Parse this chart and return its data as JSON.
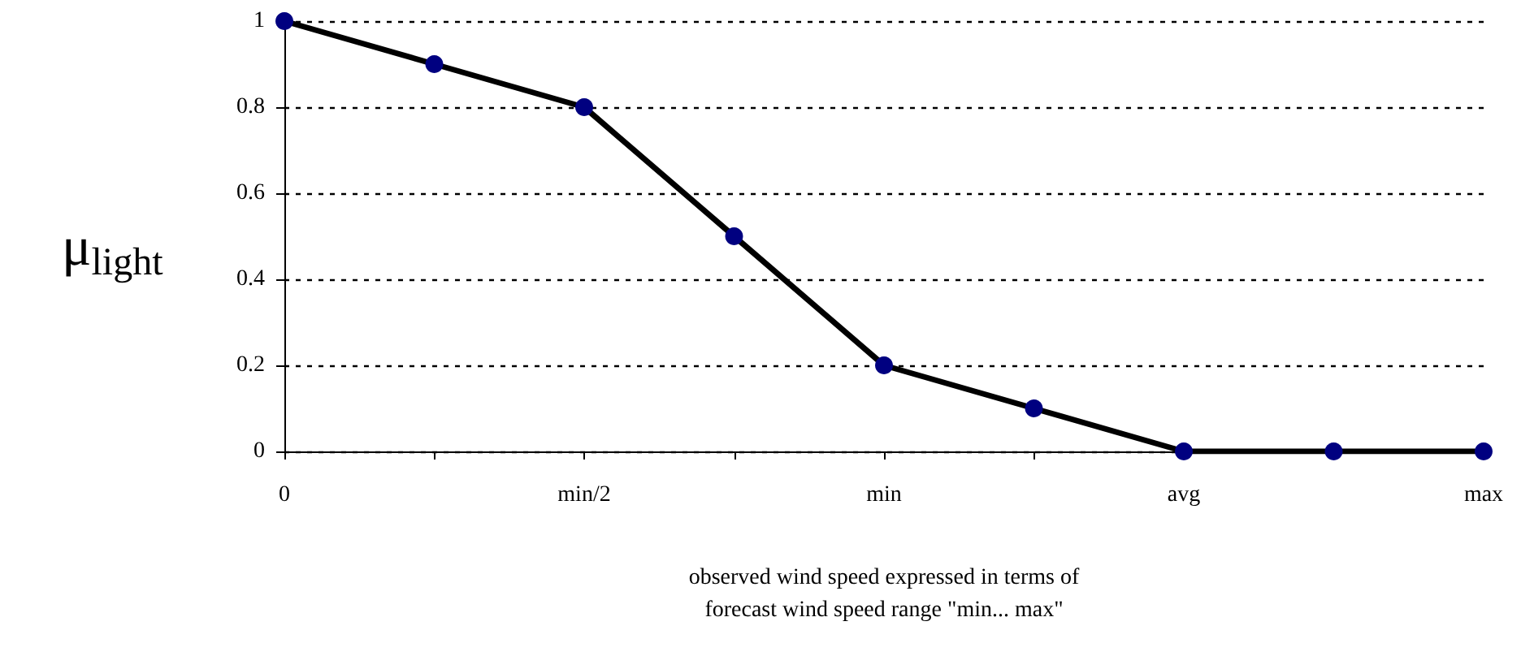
{
  "chart_data": {
    "type": "line",
    "categories": [
      "0",
      null,
      "min/2",
      null,
      "min",
      null,
      "avg",
      null,
      "max"
    ],
    "series": [
      {
        "color": "#000000",
        "colors": [
          "#000080",
          "#000080",
          "#000080",
          "#000080",
          "#000080",
          "#000080",
          "#000080",
          "#000080",
          "#000080"
        ],
        "values": [
          1,
          0.9,
          0.8,
          0.5,
          0.2,
          0.1,
          0,
          0,
          0
        ]
      }
    ],
    "ylim": [
      0,
      1
    ],
    "yticks": [
      0,
      0.2,
      0.4,
      0.6,
      0.8,
      1
    ],
    "ylabel": "μ$_{light}$",
    "xlabel": "observed wind speed expressed in terms of\nforecast wind speed range \"min... max\"",
    "grid": "y",
    "marker": "circle",
    "line_style": "solid"
  }
}
